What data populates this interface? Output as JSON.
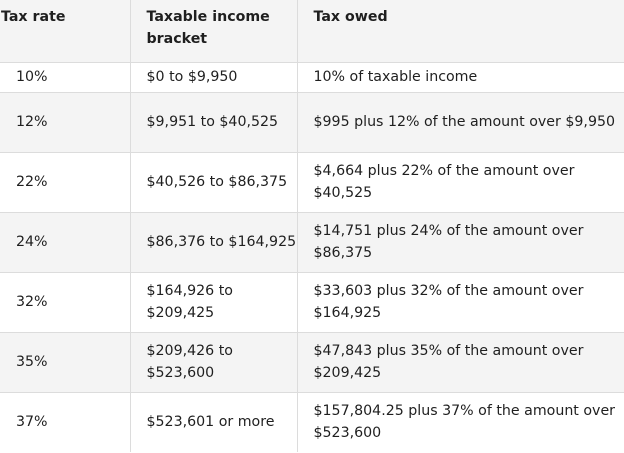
{
  "table": {
    "headers": [
      {
        "name": "header-tax-rate",
        "label": "Tax rate"
      },
      {
        "name": "header-taxable-income-bracket",
        "label": "Taxable income bracket"
      },
      {
        "name": "header-tax-owed",
        "label": "Tax owed"
      }
    ],
    "rows": [
      {
        "rate": "10%",
        "bracket": "$0 to $9,950",
        "owed": "10% of taxable income"
      },
      {
        "rate": "12%",
        "bracket": "$9,951 to $40,525",
        "owed": "$995 plus 12% of the amount over $9,950"
      },
      {
        "rate": "22%",
        "bracket": "$40,526 to $86,375",
        "owed": "$4,664 plus 22% of the amount over $40,525"
      },
      {
        "rate": "24%",
        "bracket": "$86,376 to $164,925",
        "owed": "$14,751 plus 24% of the amount over $86,375"
      },
      {
        "rate": "32%",
        "bracket": "$164,926 to $209,425",
        "owed": "$33,603 plus 32% of the amount over $164,925"
      },
      {
        "rate": "35%",
        "bracket": "$209,426 to $523,600",
        "owed": "$47,843 plus 35% of the amount over $209,425"
      },
      {
        "rate": "37%",
        "bracket": "$523,601 or more",
        "owed": "$157,804.25 plus 37% of the amount over $523,600"
      }
    ]
  }
}
